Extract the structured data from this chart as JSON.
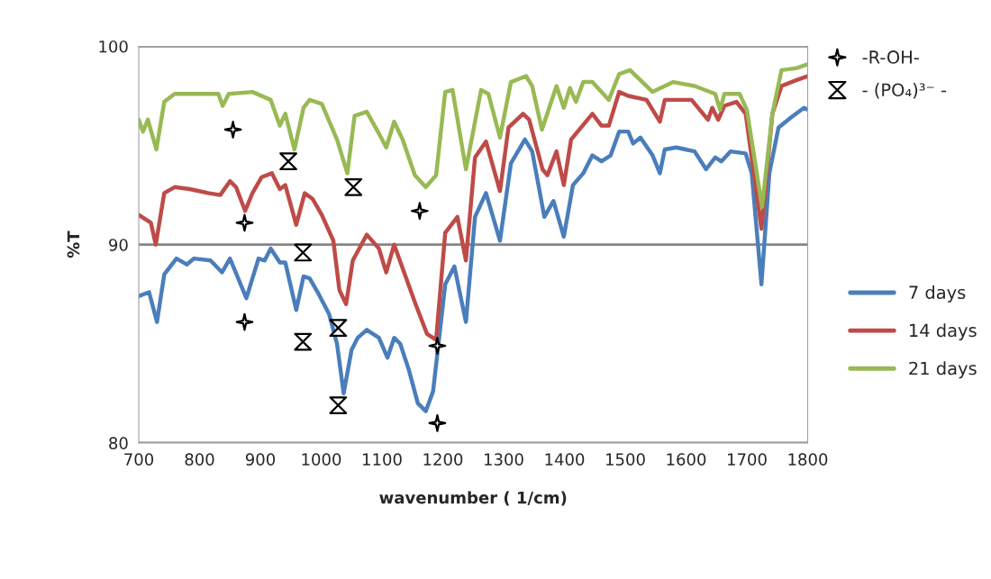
{
  "chart_data": {
    "type": "line",
    "xlabel": "wavenumber ( 1/cm)",
    "ylabel": "%T",
    "xlim": [
      700,
      1800
    ],
    "xticks": [
      700,
      800,
      900,
      1000,
      1100,
      1200,
      1300,
      1400,
      1500,
      1600,
      1700,
      1800
    ],
    "ylim": [
      80,
      100
    ],
    "yticks": [
      80,
      90,
      100
    ],
    "grid": "y",
    "legend": "right",
    "series": [
      {
        "name": "-R-OH-",
        "type": "scatter",
        "marker": "star",
        "color": "#000000",
        "x": [
          855,
          874,
          874,
          1162,
          1191,
          1191
        ],
        "values": [
          95.8,
          91.1,
          86.1,
          91.7,
          84.9,
          81.0
        ]
      },
      {
        "name": "- (PO₄)³⁻ -",
        "type": "scatter",
        "marker": "diamond",
        "color": "#000000",
        "x": [
          946,
          1053,
          970,
          970,
          1028,
          1028
        ],
        "values": [
          94.2,
          92.9,
          89.6,
          85.1,
          85.8,
          81.9
        ]
      },
      {
        "name": "7 days",
        "color": "#4a7ebb",
        "x": [
          700,
          717,
          730,
          742,
          762,
          779,
          791,
          818,
          837,
          850,
          877,
          897,
          907,
          917,
          932,
          941,
          959,
          971,
          981,
          996,
          1013,
          1026,
          1037,
          1050,
          1060,
          1075,
          1095,
          1109,
          1120,
          1130,
          1144,
          1159,
          1172,
          1184,
          1194,
          1204,
          1219,
          1238,
          1253,
          1271,
          1294,
          1312,
          1335,
          1347,
          1367,
          1382,
          1399,
          1414,
          1431,
          1446,
          1461,
          1476,
          1490,
          1505,
          1513,
          1525,
          1545,
          1557,
          1565,
          1584,
          1614,
          1633,
          1648,
          1658,
          1673,
          1698,
          1708,
          1724,
          1737,
          1752,
          1772,
          1794,
          1800
        ],
        "values": [
          87.4,
          87.6,
          86.1,
          88.5,
          89.3,
          89.0,
          89.3,
          89.2,
          88.6,
          89.3,
          87.3,
          89.3,
          89.2,
          89.8,
          89.1,
          89.1,
          86.7,
          88.4,
          88.3,
          87.5,
          86.5,
          85.0,
          82.5,
          84.7,
          85.3,
          85.7,
          85.3,
          84.3,
          85.3,
          85.0,
          83.7,
          82.0,
          81.6,
          82.6,
          85.3,
          88.0,
          88.9,
          86.1,
          91.4,
          92.6,
          90.2,
          94.1,
          95.3,
          94.7,
          91.4,
          92.2,
          90.4,
          93.0,
          93.6,
          94.5,
          94.2,
          94.5,
          95.7,
          95.7,
          95.1,
          95.4,
          94.5,
          93.6,
          94.8,
          94.9,
          94.7,
          93.8,
          94.4,
          94.2,
          94.7,
          94.6,
          93.6,
          88.0,
          93.6,
          95.9,
          96.4,
          96.9,
          96.8
        ]
      },
      {
        "name": "14 days",
        "color": "#be4b48",
        "x": [
          700,
          720,
          728,
          742,
          759,
          784,
          814,
          834,
          850,
          860,
          875,
          887,
          902,
          919,
          932,
          941,
          959,
          973,
          986,
          1001,
          1020,
          1030,
          1041,
          1052,
          1075,
          1095,
          1107,
          1120,
          1134,
          1154,
          1174,
          1189,
          1204,
          1224,
          1238,
          1253,
          1271,
          1294,
          1308,
          1332,
          1342,
          1364,
          1372,
          1387,
          1399,
          1411,
          1446,
          1461,
          1473,
          1490,
          1505,
          1535,
          1557,
          1565,
          1609,
          1636,
          1643,
          1653,
          1663,
          1683,
          1698,
          1724,
          1742,
          1757,
          1782,
          1800
        ],
        "values": [
          91.5,
          91.1,
          90.0,
          92.6,
          92.9,
          92.8,
          92.6,
          92.5,
          93.2,
          92.9,
          91.7,
          92.6,
          93.4,
          93.6,
          92.8,
          93.0,
          91.0,
          92.6,
          92.3,
          91.5,
          90.2,
          87.7,
          87.0,
          89.2,
          90.5,
          89.8,
          88.6,
          90.0,
          88.8,
          87.1,
          85.5,
          85.2,
          90.6,
          91.4,
          89.2,
          94.4,
          95.2,
          92.7,
          95.9,
          96.6,
          96.3,
          93.8,
          93.5,
          94.7,
          93.0,
          95.3,
          96.6,
          96.0,
          96.0,
          97.7,
          97.5,
          97.3,
          96.2,
          97.3,
          97.3,
          96.3,
          96.9,
          96.3,
          97.0,
          97.2,
          96.6,
          90.8,
          96.6,
          98.0,
          98.3,
          98.5
        ]
      },
      {
        "name": "21 days",
        "color": "#98b954",
        "x": [
          700,
          707,
          715,
          729,
          742,
          759,
          809,
          831,
          838,
          848,
          887,
          917,
          932,
          941,
          956,
          971,
          981,
          1001,
          1026,
          1043,
          1055,
          1075,
          1095,
          1107,
          1120,
          1134,
          1154,
          1172,
          1189,
          1204,
          1216,
          1238,
          1263,
          1275,
          1294,
          1312,
          1337,
          1347,
          1363,
          1387,
          1399,
          1409,
          1419,
          1431,
          1446,
          1473,
          1490,
          1508,
          1545,
          1579,
          1614,
          1648,
          1656,
          1663,
          1688,
          1700,
          1725,
          1742,
          1757,
          1782,
          1800
        ],
        "values": [
          96.3,
          95.7,
          96.3,
          94.8,
          97.2,
          97.6,
          97.6,
          97.6,
          97.0,
          97.6,
          97.7,
          97.3,
          96.0,
          96.6,
          94.8,
          96.9,
          97.3,
          97.1,
          95.3,
          93.6,
          96.5,
          96.7,
          95.6,
          94.9,
          96.2,
          95.3,
          93.5,
          92.9,
          93.5,
          97.7,
          97.8,
          93.8,
          97.8,
          97.6,
          95.4,
          98.2,
          98.5,
          98.0,
          95.8,
          98.0,
          96.9,
          97.9,
          97.2,
          98.2,
          98.2,
          97.3,
          98.6,
          98.8,
          97.7,
          98.2,
          98.0,
          97.6,
          96.8,
          97.6,
          97.6,
          96.8,
          91.9,
          96.6,
          98.8,
          98.9,
          99.1
        ]
      }
    ]
  }
}
